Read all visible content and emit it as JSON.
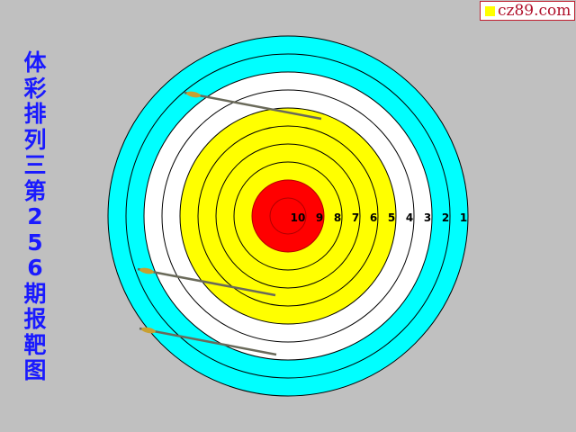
{
  "title": "体彩排列三第256期报靶图",
  "watermark": "cz89.com",
  "target": {
    "ring_labels": [
      "10",
      "9",
      "8",
      "7",
      "6",
      "5",
      "4",
      "3",
      "2",
      "1"
    ],
    "ring_colors": {
      "1": "#00ffff",
      "2": "#00ffff",
      "3": "#ffffff",
      "4": "#ffffff",
      "5": "#ffff00",
      "6": "#ffff00",
      "7": "#ffff00",
      "8": "#ffff00",
      "9": "#ff0000",
      "10": "#ff0000"
    },
    "arrows": 3
  }
}
